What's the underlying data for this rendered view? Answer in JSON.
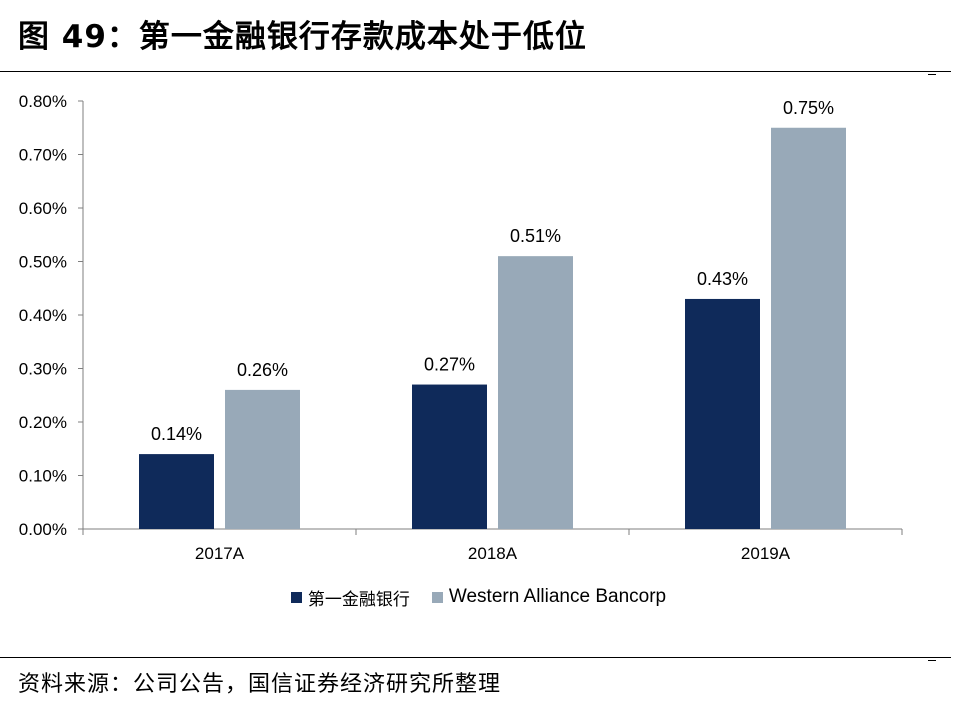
{
  "title": "图 49：第一金融银行存款成本处于低位",
  "source": "资料来源：公司公告，国信证券经济研究所整理",
  "colors": {
    "series1": "#0f2a5a",
    "series2": "#98a9b8"
  },
  "chart_data": {
    "type": "bar",
    "title": "",
    "xlabel": "",
    "ylabel": "",
    "categories": [
      "2017A",
      "2018A",
      "2019A"
    ],
    "series": [
      {
        "name": "第一金融银行",
        "values": [
          0.14,
          0.27,
          0.43
        ],
        "labels": [
          "0.14%",
          "0.27%",
          "0.43%"
        ]
      },
      {
        "name": "Western Alliance Bancorp",
        "values": [
          0.26,
          0.51,
          0.75
        ],
        "labels": [
          "0.26%",
          "0.51%",
          "0.75%"
        ]
      }
    ],
    "ylim": [
      0,
      0.8
    ],
    "yticks": [
      "0.00%",
      "0.10%",
      "0.20%",
      "0.30%",
      "0.40%",
      "0.50%",
      "0.60%",
      "0.70%",
      "0.80%"
    ],
    "grid": false,
    "legend_position": "bottom"
  }
}
